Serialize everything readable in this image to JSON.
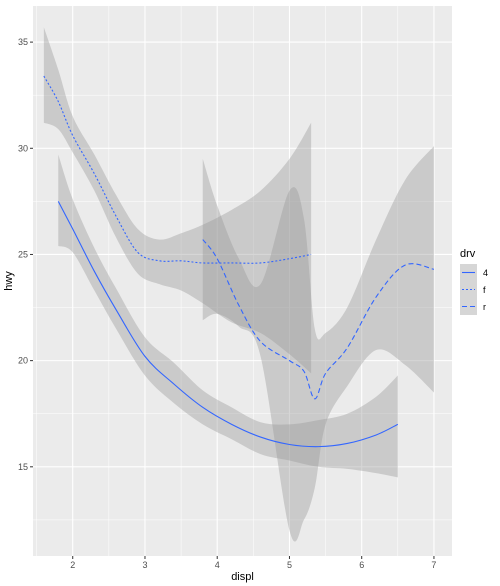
{
  "chart_data": {
    "type": "line",
    "title": "",
    "xlabel": "displ",
    "ylabel": "hwy",
    "xlim": [
      1.45,
      7.25
    ],
    "ylim": [
      10.8,
      36.7
    ],
    "xticks": [
      2,
      3,
      4,
      5,
      6,
      7
    ],
    "yticks": [
      15,
      20,
      25,
      30,
      35
    ],
    "grid": true,
    "legend": {
      "title": "drv",
      "position": "right"
    },
    "colors": {
      "panel": "#ebebeb",
      "grid": "#ffffff",
      "line": "#3366ff",
      "band": "#999999"
    },
    "series": [
      {
        "name": "4",
        "dash": "solid",
        "x": [
          1.8,
          2.0,
          2.3,
          2.6,
          3.0,
          3.4,
          3.8,
          4.2,
          4.6,
          5.0,
          5.4,
          5.8,
          6.2,
          6.5
        ],
        "y": [
          27.5,
          26.2,
          24.2,
          22.4,
          20.2,
          18.9,
          17.8,
          17.0,
          16.4,
          16.05,
          15.95,
          16.1,
          16.5,
          17.0
        ],
        "lower": [
          25.4,
          25.1,
          23.3,
          21.5,
          19.3,
          18.0,
          17.0,
          16.3,
          15.6,
          15.3,
          15.0,
          14.9,
          14.7,
          14.5
        ],
        "upper": [
          29.7,
          27.6,
          25.3,
          23.4,
          21.1,
          19.9,
          18.6,
          17.8,
          17.1,
          17.0,
          17.2,
          17.5,
          18.3,
          19.3
        ]
      },
      {
        "name": "f",
        "dash": "dotted",
        "x": [
          1.6,
          1.8,
          2.0,
          2.3,
          2.6,
          2.9,
          3.2,
          3.5,
          3.8,
          4.2,
          4.6,
          5.0,
          5.3
        ],
        "y": [
          33.4,
          32.2,
          30.6,
          28.8,
          26.8,
          25.1,
          24.7,
          24.7,
          24.6,
          24.6,
          24.6,
          24.8,
          25.0
        ],
        "lower": [
          31.2,
          30.9,
          29.8,
          28.0,
          25.8,
          24.1,
          23.6,
          23.3,
          22.7,
          21.8,
          21.3,
          20.3,
          19.4
        ],
        "upper": [
          35.7,
          33.7,
          31.5,
          29.7,
          27.8,
          26.2,
          25.7,
          26.0,
          26.4,
          27.1,
          28.0,
          29.5,
          31.2
        ]
      },
      {
        "name": "r",
        "dash": "dashed",
        "x": [
          3.8,
          4.0,
          4.3,
          4.6,
          5.0,
          5.2,
          5.35,
          5.5,
          5.8,
          6.2,
          6.6,
          7.0
        ],
        "y": [
          25.7,
          24.8,
          22.6,
          20.9,
          20.0,
          19.5,
          18.2,
          19.4,
          20.6,
          23.0,
          24.5,
          24.3
        ],
        "lower": [
          21.9,
          22.2,
          21.6,
          20.2,
          12.0,
          12.5,
          14.0,
          17.0,
          18.8,
          20.5,
          19.8,
          18.5
        ],
        "upper": [
          29.5,
          27.3,
          24.8,
          23.6,
          28.0,
          26.7,
          21.5,
          21.3,
          22.5,
          25.7,
          28.5,
          30.1
        ]
      }
    ]
  }
}
